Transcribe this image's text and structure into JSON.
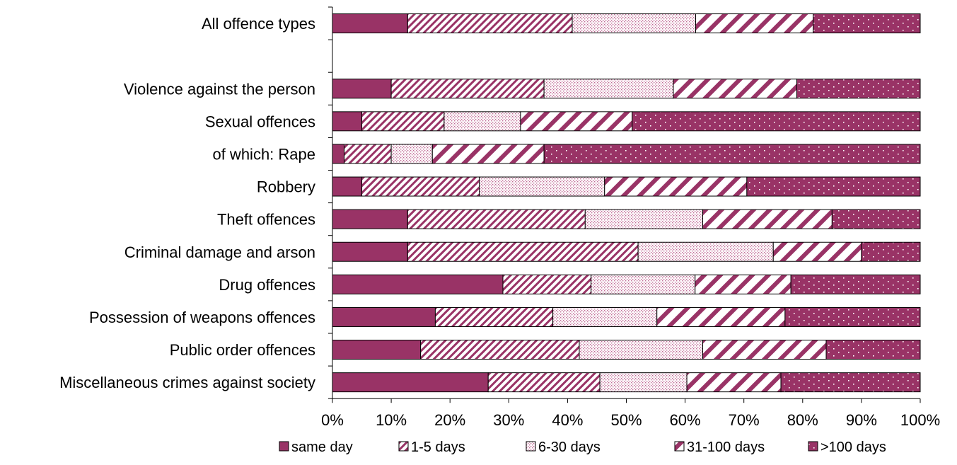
{
  "chart_data": {
    "type": "bar",
    "orientation": "horizontal",
    "stacked": true,
    "normalized": true,
    "title": "",
    "xlabel": "",
    "ylabel": "",
    "xlim": [
      0,
      100
    ],
    "x_ticks": [
      "0%",
      "10%",
      "20%",
      "30%",
      "40%",
      "50%",
      "60%",
      "70%",
      "80%",
      "90%",
      "100%"
    ],
    "grid": false,
    "legend_position": "bottom",
    "bar_color": "#993366",
    "categories": [
      "All offence types",
      "",
      "Violence against the person",
      "Sexual offences",
      "of which: Rape",
      "Robbery",
      "Theft offences",
      "Criminal damage and arson",
      "Drug offences",
      "Possession of weapons offences",
      "Public order offences",
      "Miscellaneous crimes against society"
    ],
    "series": [
      {
        "name": "same day",
        "pattern": "solid",
        "values": [
          12.8,
          null,
          10,
          5,
          2,
          5,
          12.8,
          12.8,
          29,
          17.5,
          15,
          26.5
        ]
      },
      {
        "name": "1-5 days",
        "pattern": "diagonal",
        "values": [
          28,
          null,
          26,
          14,
          8,
          20,
          30.2,
          39.2,
          15,
          20,
          27,
          19
        ]
      },
      {
        "name": "6-30 days",
        "pattern": "dotted",
        "values": [
          21,
          null,
          22,
          13,
          7,
          21.3,
          20,
          23,
          17.7,
          17.7,
          21,
          14.8
        ]
      },
      {
        "name": "31-100 days",
        "pattern": "wide-diagonal",
        "values": [
          20,
          null,
          21,
          19,
          19,
          24.2,
          22,
          15,
          16.3,
          21.8,
          21,
          16
        ]
      },
      {
        "name": ">100 days",
        "pattern": "solid-dots",
        "values": [
          18.2,
          null,
          21,
          49,
          64,
          29.5,
          15,
          10,
          22,
          23,
          16,
          23.7
        ]
      }
    ]
  }
}
